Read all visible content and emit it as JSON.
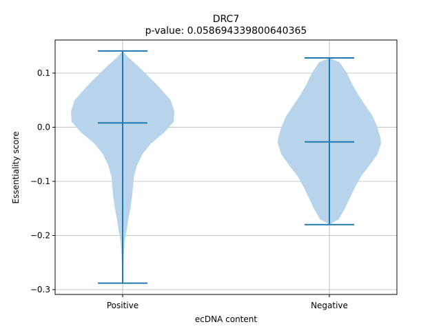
{
  "chart_data": {
    "type": "violin",
    "title": "DRC7",
    "subtitle": "p-value: 0.058694339800640365",
    "xlabel": "ecDNA content",
    "ylabel": "Essentiality score",
    "categories": [
      "Positive",
      "Negative"
    ],
    "ylim": [
      -0.31,
      0.16
    ],
    "yticks": [
      0.1,
      0.0,
      -0.1,
      -0.2,
      -0.3
    ],
    "ytick_labels": [
      "0.1",
      "0.0",
      "−0.1",
      "−0.2",
      "−0.3"
    ],
    "grid": true,
    "series": [
      {
        "name": "Positive",
        "max": 0.141,
        "median": 0.008,
        "min": -0.288,
        "density_profile": [
          [
            0.141,
            0.0
          ],
          [
            0.13,
            0.1
          ],
          [
            0.11,
            0.33
          ],
          [
            0.08,
            0.65
          ],
          [
            0.05,
            0.93
          ],
          [
            0.03,
            1.0
          ],
          [
            0.01,
            0.99
          ],
          [
            -0.01,
            0.8
          ],
          [
            -0.03,
            0.55
          ],
          [
            -0.05,
            0.38
          ],
          [
            -0.07,
            0.28
          ],
          [
            -0.09,
            0.22
          ],
          [
            -0.11,
            0.2
          ],
          [
            -0.13,
            0.18
          ],
          [
            -0.15,
            0.15
          ],
          [
            -0.17,
            0.11
          ],
          [
            -0.19,
            0.08
          ],
          [
            -0.21,
            0.04
          ],
          [
            -0.24,
            0.02
          ],
          [
            -0.27,
            0.01
          ],
          [
            -0.288,
            0.0
          ]
        ]
      },
      {
        "name": "Negative",
        "max": 0.128,
        "median": -0.027,
        "min": -0.18,
        "density_profile": [
          [
            0.128,
            0.0
          ],
          [
            0.12,
            0.2
          ],
          [
            0.1,
            0.34
          ],
          [
            0.08,
            0.44
          ],
          [
            0.06,
            0.56
          ],
          [
            0.04,
            0.7
          ],
          [
            0.02,
            0.84
          ],
          [
            0.0,
            0.93
          ],
          [
            -0.02,
            0.99
          ],
          [
            -0.03,
            1.0
          ],
          [
            -0.05,
            0.93
          ],
          [
            -0.07,
            0.78
          ],
          [
            -0.09,
            0.62
          ],
          [
            -0.11,
            0.5
          ],
          [
            -0.13,
            0.4
          ],
          [
            -0.15,
            0.3
          ],
          [
            -0.17,
            0.18
          ],
          [
            -0.18,
            0.0
          ]
        ]
      }
    ],
    "colors": {
      "violin_fill": "#b8d4ea",
      "lines": "#1f77b4",
      "grid": "#b0b0b0"
    }
  }
}
